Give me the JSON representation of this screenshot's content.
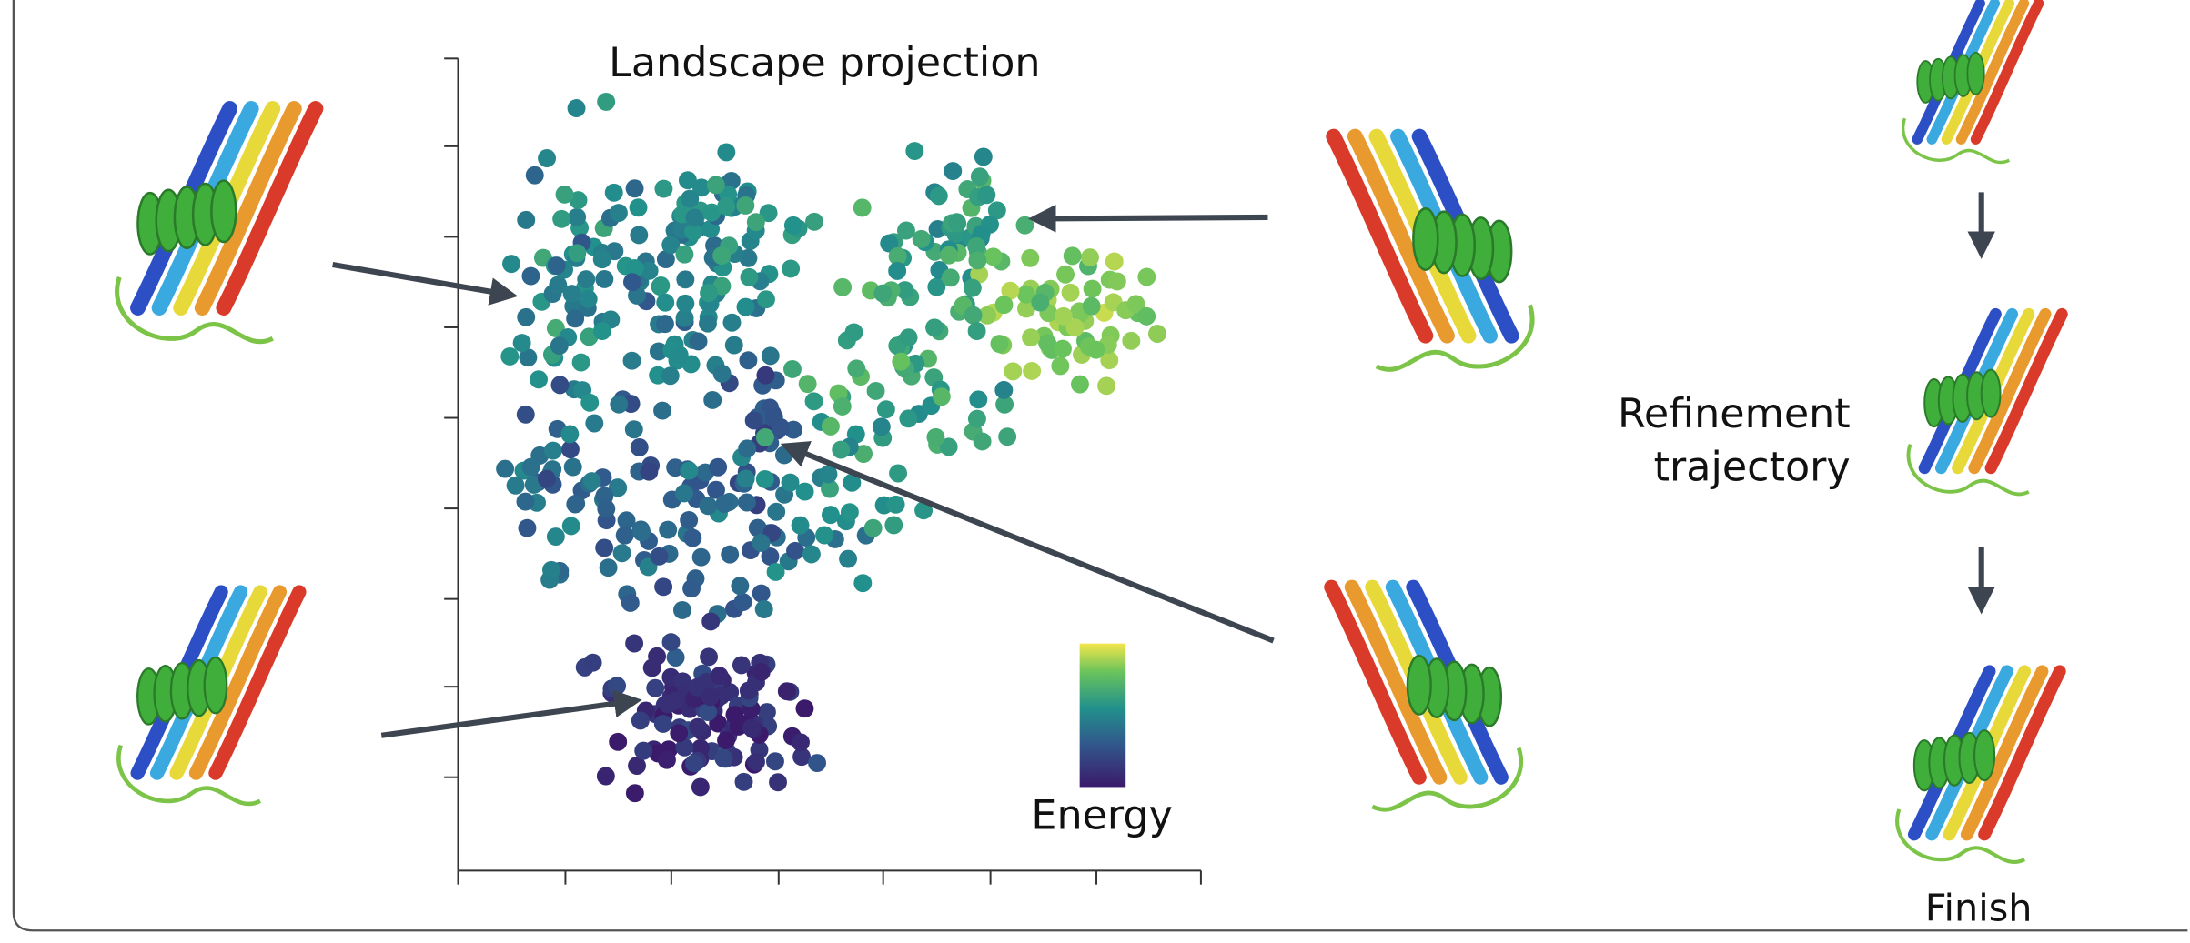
{
  "projection_title": "Landscape projection",
  "colorbar_label": "Energy",
  "refinement_label": [
    "Refinement",
    "trajectory"
  ],
  "finish_label": "Finish"
}
